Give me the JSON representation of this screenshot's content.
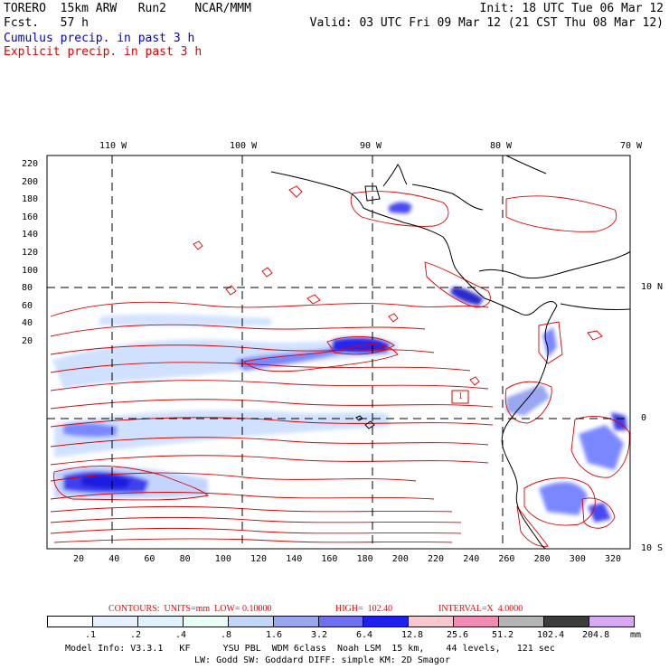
{
  "header": {
    "model": "TORERO  15km ARW   Run2    NCAR/MMM",
    "fcst": "Fcst.   57 h",
    "init": "Init: 18 UTC Tue 06 Mar 12",
    "valid": "Valid: 03 UTC Fri 09 Mar 12 (21 CST Thu 08 Mar 12)",
    "legend_cumulus": "Cumulus precip. in past 3 h",
    "legend_explicit": "Explicit precip. in past 3 h"
  },
  "map": {
    "lon_labels": [
      "110 W",
      "100 W",
      "90 W",
      "80 W",
      "70 W"
    ],
    "lat_labels": [
      "10 N",
      "0",
      "10 S"
    ],
    "y_ticks": [
      "220",
      "200",
      "180",
      "160",
      "140",
      "120",
      "100",
      "80",
      "60",
      "40",
      "20"
    ],
    "x_ticks": [
      "20",
      "40",
      "60",
      "80",
      "100",
      "120",
      "140",
      "160",
      "180",
      "200",
      "220",
      "240",
      "260",
      "280",
      "300",
      "320"
    ],
    "box_label": "1",
    "colors": {
      "explicit": "#e00000",
      "cumulus_light": "#c8dcff",
      "cumulus_mid": "#7a88ff",
      "cumulus_dark": "#1a1aff",
      "coast": "#000000"
    }
  },
  "contour_info": {
    "contours": "CONTOURS:  UNITS=mm  LOW= 0.10000",
    "high": "HIGH=  102.40",
    "interval": "INTERVAL=X  4.0000"
  },
  "colorbar": {
    "labels": [
      ".1",
      ".2",
      ".4",
      ".8",
      "1.6",
      "3.2",
      "6.4",
      "12.8",
      "25.6",
      "51.2",
      "102.4",
      "204.8"
    ],
    "unit": "mm",
    "colors": [
      "#ffffff",
      "#e6f0ff",
      "#dff3ff",
      "#e8fff6",
      "#c4d6f5",
      "#9aa6f0",
      "#6f6ff0",
      "#2020ee",
      "#f5c8d0",
      "#f08cb4",
      "#b4b4b4",
      "#3c3c3c",
      "#d6a8f5"
    ]
  },
  "footer": {
    "line1": "Model Info: V3.3.1   KF      YSU PBL  WDM 6class  Noah LSM  15 km,    44 levels,   121 sec",
    "line2": "LW: Godd SW: Goddard DIFF: simple KM: 2D Smagor"
  }
}
